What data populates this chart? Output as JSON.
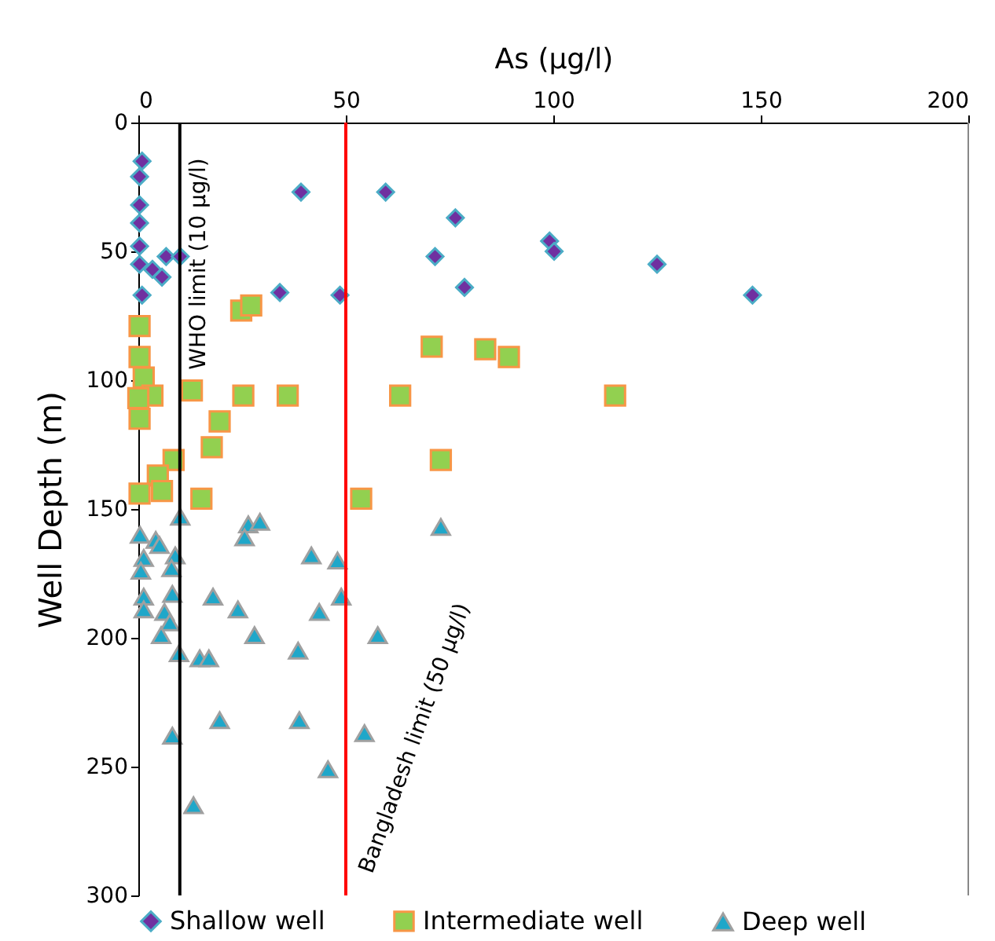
{
  "chart_data": {
    "type": "scatter",
    "xlabel": "As (µg/l)",
    "ylabel": "Well Depth (m)",
    "xlim": [
      0,
      200
    ],
    "xticks": [
      0,
      50,
      100,
      150,
      200
    ],
    "ylim": [
      300,
      0
    ],
    "yticks": [
      0,
      50,
      100,
      150,
      200,
      250,
      300
    ],
    "grid": false,
    "legend": "bottom",
    "ref_lines": [
      {
        "axis": "x",
        "value": 10,
        "label": "WHO limit (10 µg/l)",
        "color": "#000000"
      },
      {
        "axis": "x",
        "value": 50,
        "label": "Bangladesh limit (50 µg/l)",
        "color": "#ff0000"
      }
    ],
    "series": [
      {
        "name": "Shallow well",
        "color": "#7030a0",
        "marker": "diamond",
        "x": [
          0.9,
          0.3,
          0.3,
          0.3,
          0.3,
          0.3,
          3.4,
          5.7,
          6.7,
          10.1,
          0.9,
          39.2,
          59.6,
          76.4,
          71.5,
          78.6,
          34.1,
          48.6,
          99.1,
          100.2,
          125,
          148
        ],
        "values": [
          15,
          21,
          32,
          39,
          48,
          55,
          57,
          60,
          52,
          52,
          67,
          27,
          27,
          37,
          52,
          64,
          66,
          67,
          46,
          50,
          55,
          67
        ]
      },
      {
        "name": "Intermediate well",
        "color": "#92d050",
        "marker": "square",
        "x": [
          24.8,
          27.2,
          0.3,
          0.3,
          1.3,
          12.9,
          3.4,
          0,
          25.3,
          36,
          63.1,
          70.7,
          83.6,
          89.3,
          114.9,
          19.6,
          0.3,
          17.7,
          8.5,
          72.9,
          4.7,
          5.7,
          0.3,
          15.2,
          53.7
        ],
        "values": [
          73,
          71,
          79,
          91,
          99,
          104,
          106,
          107,
          106,
          106,
          106,
          87,
          88,
          91,
          106,
          116,
          115,
          126,
          131,
          131,
          137,
          143,
          144,
          146,
          146
        ]
      },
      {
        "name": "Deep well",
        "color": "#1fa7c9",
        "marker": "triangle",
        "x": [
          10.1,
          0.4,
          4.2,
          5.1,
          26.5,
          29.3,
          25.6,
          1.3,
          8.9,
          0.6,
          8,
          41.7,
          48,
          1.3,
          8.2,
          18,
          48.9,
          1.3,
          6.3,
          24,
          43.6,
          7.6,
          5.5,
          28,
          57.7,
          38.5,
          9.8,
          14.8,
          17,
          8.2,
          19.6,
          38.8,
          54.5,
          45.7,
          13.3,
          72.9
        ],
        "values": [
          153,
          160,
          162,
          164,
          156,
          155,
          161,
          169,
          168,
          174,
          173,
          168,
          170,
          184,
          183,
          184,
          184,
          189,
          190,
          189,
          190,
          194,
          199,
          199,
          199,
          205,
          206,
          208,
          208,
          238,
          232,
          232,
          237,
          251,
          265,
          157
        ]
      }
    ]
  }
}
